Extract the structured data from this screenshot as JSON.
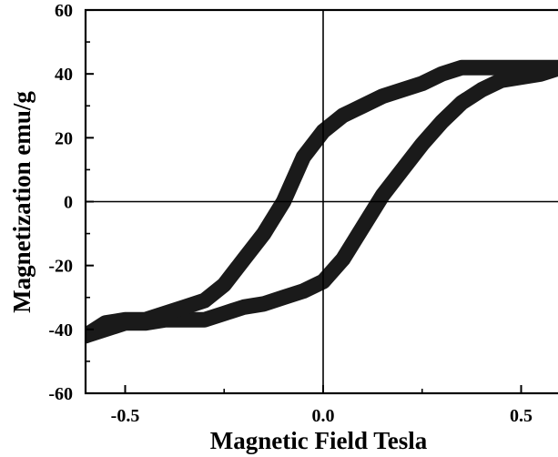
{
  "chart_data": {
    "type": "line",
    "title": "",
    "xlabel": "Magnetic Field Tesla",
    "ylabel": "Magnetization emu/g",
    "xlim": [
      -0.6,
      0.6
    ],
    "ylim": [
      -60,
      60
    ],
    "x_ticks": [
      -0.5,
      0.0,
      0.5
    ],
    "x_tick_labels": [
      "-0.5",
      "0.0",
      "0.5"
    ],
    "y_ticks": [
      -60,
      -40,
      -20,
      0,
      20,
      40,
      60
    ],
    "y_tick_labels": [
      "-60",
      "-40",
      "-20",
      "0",
      "20",
      "40",
      "60"
    ],
    "zero_lines": true,
    "grid": false,
    "legend": "none",
    "line_color": "#1a1a1a",
    "series": [
      {
        "x": [
          -0.6,
          -0.55,
          -0.5,
          -0.45,
          -0.4,
          -0.35,
          -0.3,
          -0.25,
          -0.2,
          -0.15,
          -0.1,
          -0.05,
          0.0,
          0.05,
          0.1,
          0.15,
          0.2,
          0.25,
          0.3,
          0.35,
          0.4,
          0.45,
          0.5,
          0.55,
          0.6
        ],
        "y": [
          -42,
          -40,
          -38,
          -38,
          -37,
          -37,
          -37,
          -35,
          -33,
          -32,
          -30,
          -28,
          -25,
          -18,
          -8,
          2,
          10,
          18,
          25,
          31,
          35,
          38,
          39,
          40,
          42
        ]
      },
      {
        "x": [
          0.6,
          0.55,
          0.5,
          0.45,
          0.4,
          0.35,
          0.3,
          0.25,
          0.2,
          0.15,
          0.1,
          0.05,
          0.0,
          -0.05,
          -0.1,
          -0.15,
          -0.2,
          -0.25,
          -0.3,
          -0.35,
          -0.4,
          -0.45,
          -0.5,
          -0.55,
          -0.6
        ],
        "y": [
          42,
          42,
          42,
          42,
          42,
          42,
          40,
          37,
          35,
          33,
          30,
          27,
          22,
          14,
          0,
          -10,
          -18,
          -26,
          -31,
          -33,
          -35,
          -37,
          -37,
          -38,
          -42
        ]
      }
    ]
  }
}
